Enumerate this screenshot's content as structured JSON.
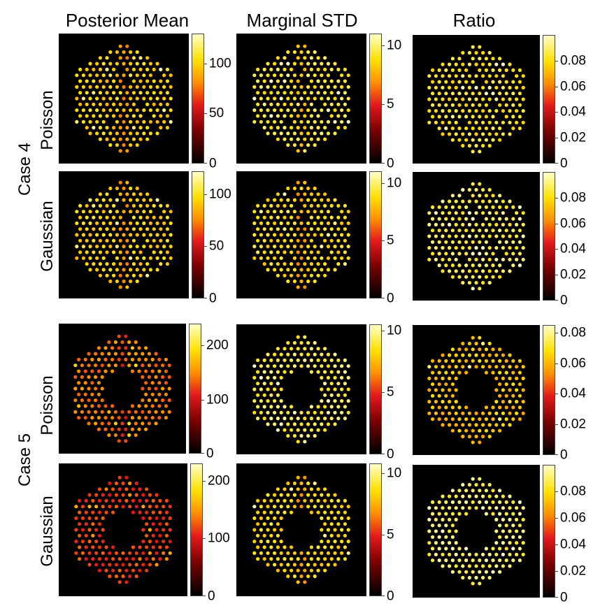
{
  "column_titles": [
    "Posterior Mean",
    "Marginal STD",
    "Ratio"
  ],
  "case_labels": [
    "Case 4",
    "Case 5"
  ],
  "chart_data": {
    "type": "heatmap",
    "description_rows": [
      "Poisson",
      "Gaussian",
      "Poisson",
      "Gaussian"
    ],
    "panels": [
      {
        "case": "Case 4",
        "model": "Poisson",
        "metric": "Posterior Mean",
        "clim": [
          0,
          130
        ],
        "ticks": [
          "0",
          "50",
          "100"
        ],
        "tick_values": [
          0,
          50,
          100
        ],
        "pattern": "hex_dots",
        "center_hole": false,
        "base_level": 0.78,
        "stripe": true,
        "dark_pins": true
      },
      {
        "case": "Case 4",
        "model": "Poisson",
        "metric": "Marginal STD",
        "clim": [
          0,
          11
        ],
        "ticks": [
          "0",
          "5",
          "10"
        ],
        "tick_values": [
          0,
          5,
          10
        ],
        "pattern": "hex_dots",
        "center_hole": false,
        "base_level": 0.85,
        "stripe": true,
        "dark_pins": true
      },
      {
        "case": "Case 4",
        "model": "Poisson",
        "metric": "Ratio",
        "clim": [
          0,
          0.1
        ],
        "ticks": [
          "0",
          "0.02",
          "0.04",
          "0.06",
          "0.08"
        ],
        "tick_values": [
          0,
          0.02,
          0.04,
          0.06,
          0.08
        ],
        "pattern": "hex_dots",
        "center_hole": false,
        "base_level": 0.83,
        "stripe": false,
        "dark_pins": true
      },
      {
        "case": "Case 4",
        "model": "Gaussian",
        "metric": "Posterior Mean",
        "clim": [
          0,
          122
        ],
        "ticks": [
          "0",
          "50",
          "100"
        ],
        "tick_values": [
          0,
          50,
          100
        ],
        "pattern": "hex_dots",
        "center_hole": false,
        "base_level": 0.78,
        "stripe": true,
        "dark_pins": true
      },
      {
        "case": "Case 4",
        "model": "Gaussian",
        "metric": "Marginal STD",
        "clim": [
          0,
          11
        ],
        "ticks": [
          "0",
          "5",
          "10"
        ],
        "tick_values": [
          0,
          5,
          10
        ],
        "pattern": "hex_dots",
        "center_hole": false,
        "base_level": 0.8,
        "stripe": true,
        "dark_pins": true
      },
      {
        "case": "Case 4",
        "model": "Gaussian",
        "metric": "Ratio",
        "clim": [
          0,
          0.1
        ],
        "ticks": [
          "0",
          "0.02",
          "0.04",
          "0.06",
          "0.08"
        ],
        "tick_values": [
          0,
          0.02,
          0.04,
          0.06,
          0.08
        ],
        "pattern": "hex_dots",
        "center_hole": false,
        "base_level": 0.88,
        "stripe": false,
        "dark_pins": true
      },
      {
        "case": "Case 5",
        "model": "Poisson",
        "metric": "Posterior Mean",
        "clim": [
          0,
          240
        ],
        "ticks": [
          "0",
          "100",
          "200"
        ],
        "tick_values": [
          0,
          100,
          200
        ],
        "pattern": "hex_dots",
        "center_hole": true,
        "base_level": 0.6,
        "stripe": true,
        "dark_pins": false
      },
      {
        "case": "Case 5",
        "model": "Poisson",
        "metric": "Marginal STD",
        "clim": [
          0,
          10.5
        ],
        "ticks": [
          "0",
          "5",
          "10"
        ],
        "tick_values": [
          0,
          5,
          10
        ],
        "pattern": "hex_dots",
        "center_hole": true,
        "base_level": 0.88,
        "stripe": false,
        "dark_pins": false
      },
      {
        "case": "Case 5",
        "model": "Poisson",
        "metric": "Ratio",
        "clim": [
          0,
          0.085
        ],
        "ticks": [
          "0",
          "0.02",
          "0.04",
          "0.06",
          "0.08"
        ],
        "tick_values": [
          0,
          0.02,
          0.04,
          0.06,
          0.08
        ],
        "pattern": "hex_dots",
        "center_hole": true,
        "base_level": 0.74,
        "stripe": false,
        "dark_pins": false
      },
      {
        "case": "Case 5",
        "model": "Gaussian",
        "metric": "Posterior Mean",
        "clim": [
          0,
          230
        ],
        "ticks": [
          "0",
          "100",
          "200"
        ],
        "tick_values": [
          0,
          100,
          200
        ],
        "pattern": "hex_dots",
        "center_hole": true,
        "base_level": 0.5,
        "stripe": false,
        "dark_pins": false
      },
      {
        "case": "Case 5",
        "model": "Gaussian",
        "metric": "Marginal STD",
        "clim": [
          0,
          10.8
        ],
        "ticks": [
          "0",
          "5",
          "10"
        ],
        "tick_values": [
          0,
          5,
          10
        ],
        "pattern": "hex_dots",
        "center_hole": true,
        "base_level": 0.8,
        "stripe": true,
        "dark_pins": false
      },
      {
        "case": "Case 5",
        "model": "Gaussian",
        "metric": "Ratio",
        "clim": [
          0,
          0.1
        ],
        "ticks": [
          "0",
          "0.02",
          "0.04",
          "0.06",
          "0.08"
        ],
        "tick_values": [
          0,
          0.02,
          0.04,
          0.06,
          0.08
        ],
        "pattern": "hex_dots",
        "center_hole": true,
        "base_level": 0.9,
        "stripe": false,
        "dark_pins": false
      }
    ]
  }
}
